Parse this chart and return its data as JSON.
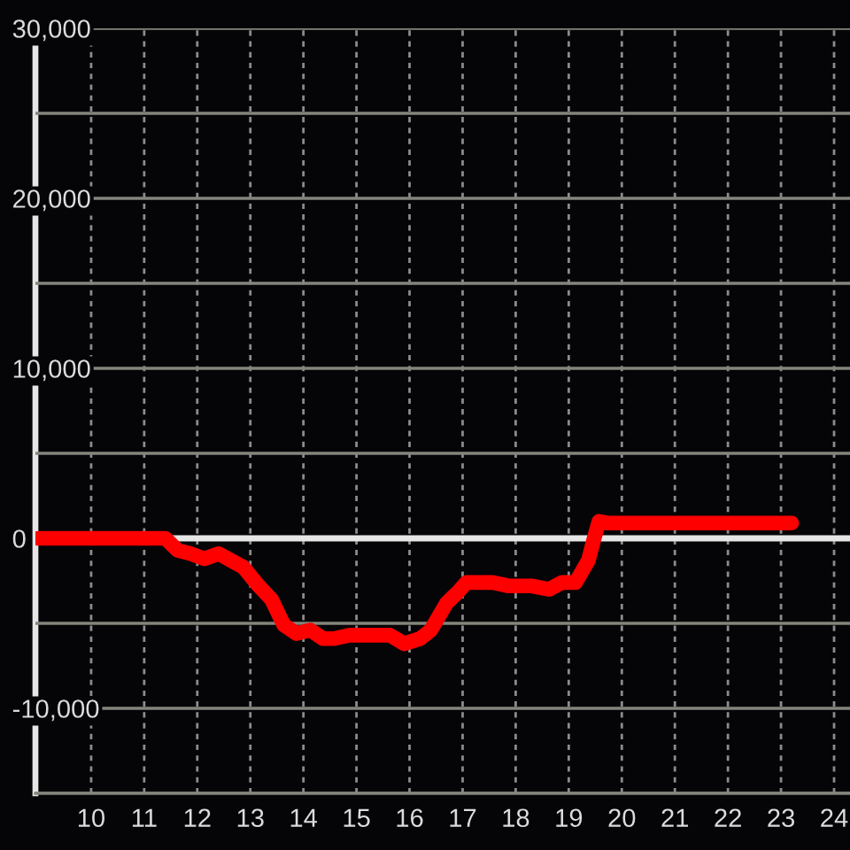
{
  "chart_data": {
    "type": "line",
    "x": [
      9.0,
      11.4,
      11.63,
      11.87,
      12.13,
      12.4,
      12.87,
      13.13,
      13.4,
      13.63,
      13.87,
      14.13,
      14.37,
      14.57,
      14.87,
      15.63,
      15.9,
      16.2,
      16.4,
      16.7,
      16.9,
      17.07,
      17.57,
      17.87,
      18.3,
      18.63,
      18.87,
      19.13,
      19.37,
      19.47,
      19.57,
      19.73,
      23.2
    ],
    "series": [
      {
        "color": "#ff0000",
        "values": [
          0,
          0,
          -700,
          -900,
          -1200,
          -900,
          -1700,
          -2700,
          -3600,
          -5100,
          -5600,
          -5400,
          -5900,
          -5900,
          -5700,
          -5700,
          -6200,
          -5900,
          -5400,
          -3800,
          -3200,
          -2600,
          -2600,
          -2800,
          -2800,
          -3000,
          -2600,
          -2600,
          -1300,
          -100,
          1000,
          900,
          900
        ]
      }
    ],
    "xlim": [
      8.95,
      24.3
    ],
    "xticks": [
      10,
      11,
      12,
      13,
      14,
      15,
      16,
      17,
      18,
      19,
      20,
      21,
      22,
      23,
      24
    ],
    "ylim": [
      -15000,
      30000
    ],
    "yticks": [
      {
        "value": -15000,
        "label": null
      },
      {
        "value": -10000,
        "label": "-10,000"
      },
      {
        "value": -5000,
        "label": null
      },
      0,
      {
        "value": 5000,
        "label": null
      },
      {
        "value": 10000,
        "label": "10,000"
      },
      {
        "value": 15000,
        "label": null
      },
      {
        "value": 20000,
        "label": "20,000"
      },
      {
        "value": 25000,
        "label": null
      },
      {
        "value": 30000,
        "label": "30,000"
      }
    ],
    "grid": true,
    "line_style": "solid",
    "ref_lines": [
      {
        "axis": "y",
        "value": 0,
        "color": "#e6e6e6"
      }
    ]
  }
}
